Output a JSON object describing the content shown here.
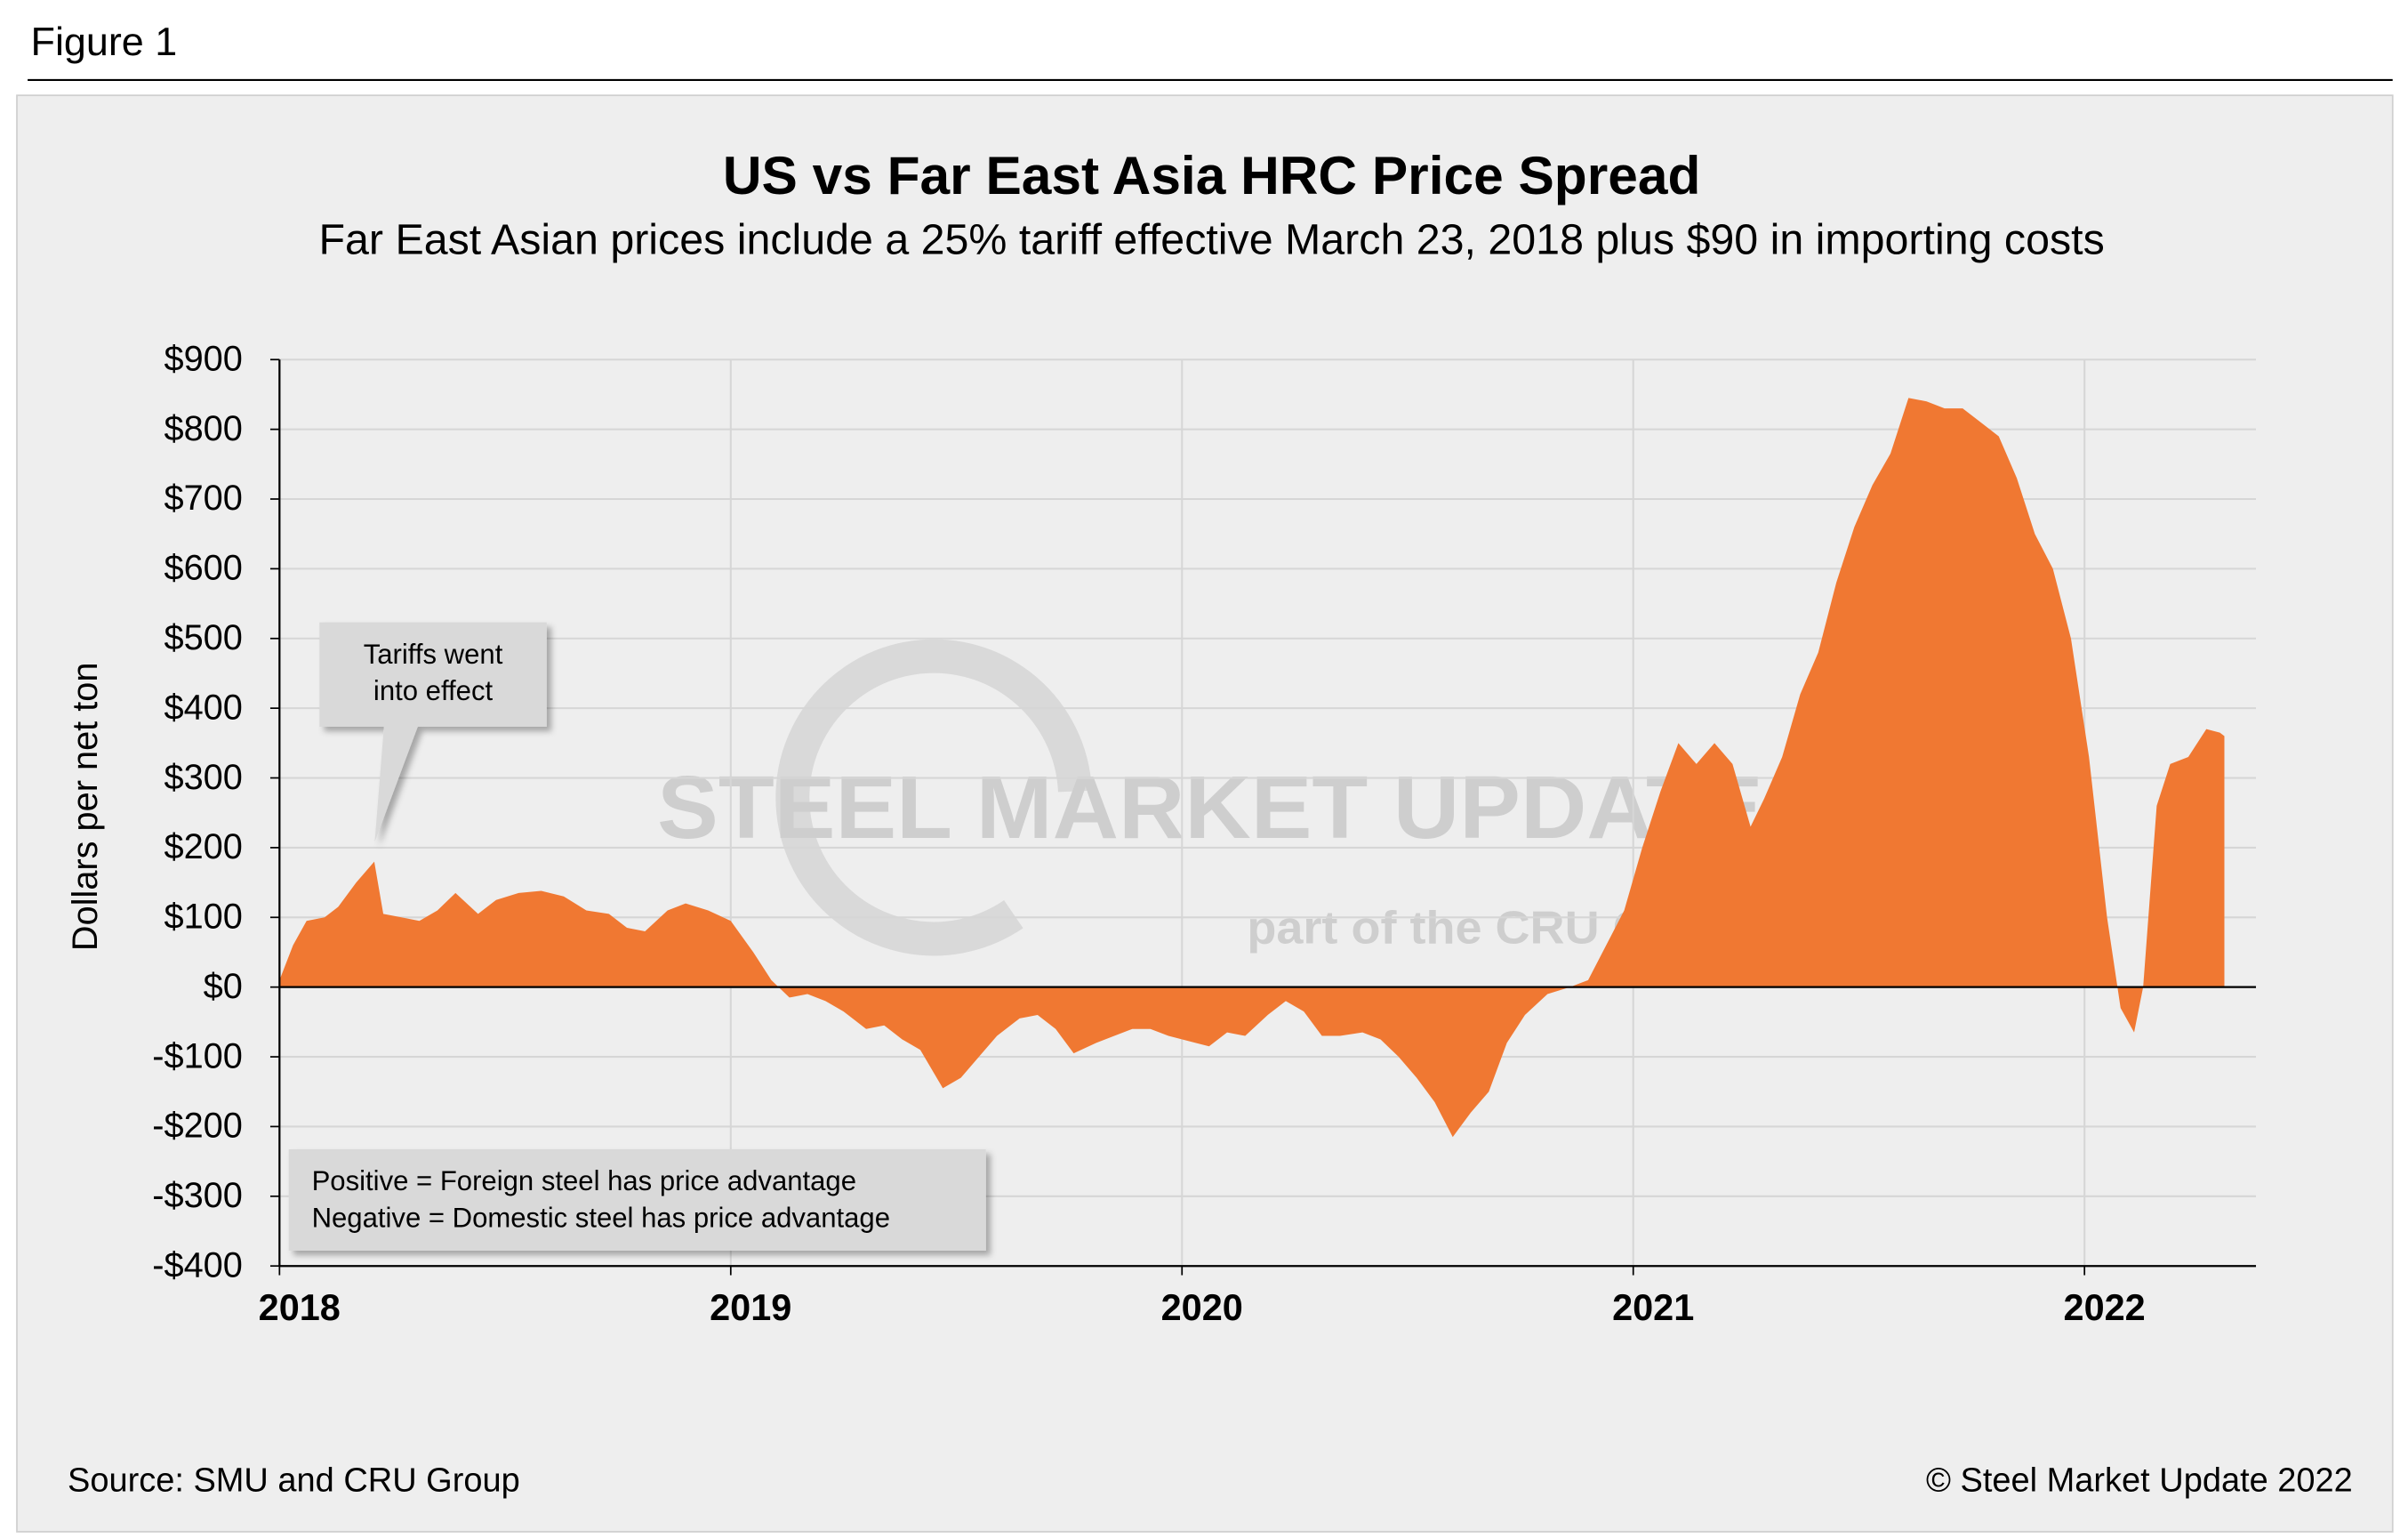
{
  "figure_label": "Figure 1",
  "source": "Source: SMU and CRU Group",
  "copyright": "© Steel Market Update 2022",
  "watermark": {
    "brand": "STEEL MARKET UPDATE",
    "tagline": "part of the CRU Group"
  },
  "chart_data": {
    "type": "area",
    "title": "US vs Far East Asia HRC Price Spread",
    "subtitle": "Far East Asian prices include a 25% tariff effective March 23, 2018 plus $90 in importing costs",
    "y_label": "Dollars per net ton",
    "color": "#f07832",
    "grid": true,
    "xlim": [
      2018,
      2022.38
    ],
    "xticks": [
      2018,
      2019,
      2020,
      2021,
      2022
    ],
    "ylim": [
      -400,
      900
    ],
    "yticks": [
      {
        "value": -400,
        "label": "-$400"
      },
      {
        "value": -300,
        "label": "-$300"
      },
      {
        "value": -200,
        "label": "-$200"
      },
      {
        "value": -100,
        "label": "-$100"
      },
      {
        "value": 0,
        "label": "$0"
      },
      {
        "value": 100,
        "label": "$100"
      },
      {
        "value": 200,
        "label": "$200"
      },
      {
        "value": 300,
        "label": "$300"
      },
      {
        "value": 400,
        "label": "$400"
      },
      {
        "value": 500,
        "label": "$500"
      },
      {
        "value": 600,
        "label": "$600"
      },
      {
        "value": 700,
        "label": "$700"
      },
      {
        "value": 800,
        "label": "$800"
      },
      {
        "value": 900,
        "label": "$900"
      }
    ],
    "x": [
      2018.0,
      2018.03,
      2018.06,
      2018.1,
      2018.13,
      2018.17,
      2018.21,
      2018.23,
      2018.27,
      2018.31,
      2018.35,
      2018.39,
      2018.44,
      2018.48,
      2018.53,
      2018.58,
      2018.63,
      2018.68,
      2018.73,
      2018.77,
      2018.81,
      2018.86,
      2018.9,
      2018.95,
      2019.0,
      2019.05,
      2019.09,
      2019.13,
      2019.17,
      2019.21,
      2019.25,
      2019.3,
      2019.34,
      2019.38,
      2019.42,
      2019.47,
      2019.51,
      2019.55,
      2019.59,
      2019.64,
      2019.68,
      2019.72,
      2019.76,
      2019.81,
      2019.85,
      2019.89,
      2019.93,
      2019.97,
      2020.03,
      2020.06,
      2020.1,
      2020.14,
      2020.19,
      2020.23,
      2020.27,
      2020.31,
      2020.35,
      2020.4,
      2020.44,
      2020.48,
      2020.52,
      2020.56,
      2020.6,
      2020.64,
      2020.68,
      2020.72,
      2020.76,
      2020.81,
      2020.86,
      2020.9,
      2020.94,
      2020.98,
      2021.02,
      2021.06,
      2021.1,
      2021.14,
      2021.18,
      2021.22,
      2021.26,
      2021.29,
      2021.33,
      2021.37,
      2021.41,
      2021.45,
      2021.49,
      2021.53,
      2021.57,
      2021.61,
      2021.65,
      2021.69,
      2021.73,
      2021.77,
      2021.81,
      2021.85,
      2021.89,
      2021.93,
      2021.97,
      2022.01,
      2022.05,
      2022.08,
      2022.11,
      2022.13,
      2022.16,
      2022.19,
      2022.23,
      2022.27,
      2022.3,
      2022.31
    ],
    "values": [
      10,
      60,
      95,
      100,
      115,
      150,
      180,
      105,
      100,
      95,
      110,
      135,
      105,
      125,
      135,
      138,
      130,
      110,
      105,
      85,
      80,
      110,
      120,
      110,
      95,
      50,
      10,
      -15,
      -10,
      -20,
      -35,
      -60,
      -55,
      -75,
      -90,
      -145,
      -130,
      -100,
      -70,
      -45,
      -40,
      -60,
      -95,
      -80,
      -70,
      -60,
      -60,
      -70,
      -80,
      -85,
      -65,
      -70,
      -40,
      -20,
      -35,
      -70,
      -70,
      -65,
      -75,
      -100,
      -130,
      -165,
      -215,
      -180,
      -150,
      -80,
      -40,
      -10,
      0,
      10,
      60,
      110,
      200,
      280,
      350,
      320,
      350,
      320,
      230,
      270,
      330,
      420,
      480,
      580,
      660,
      720,
      765,
      845,
      840,
      830,
      830,
      810,
      790,
      730,
      650,
      600,
      500,
      330,
      100,
      -30,
      -65,
      0,
      260,
      320,
      330,
      370,
      365,
      360
    ],
    "annotation": [
      "Tariffs went",
      "into effect"
    ],
    "note": [
      "Positive = Foreign steel has price advantage",
      "Negative = Domestic steel has price advantage"
    ]
  }
}
